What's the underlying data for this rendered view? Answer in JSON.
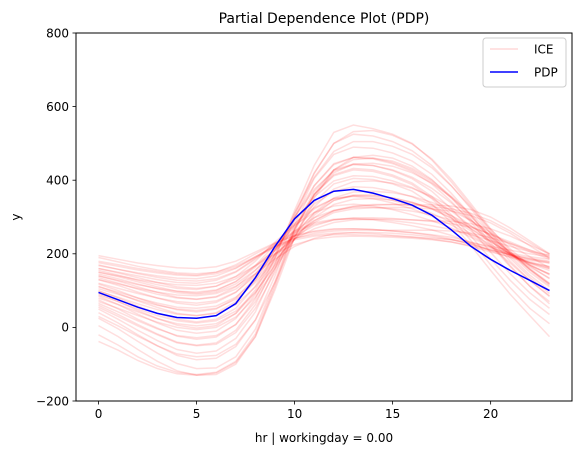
{
  "chart_data": {
    "type": "line",
    "title": "Partial Dependence Plot (PDP)",
    "xlabel": "hr | workingday = 0.00",
    "ylabel": "y",
    "xlim": [
      -1.15,
      24.15
    ],
    "ylim": [
      -200,
      800
    ],
    "xticks": [
      0,
      5,
      10,
      15,
      20
    ],
    "yticks": [
      -200,
      0,
      200,
      400,
      600,
      800
    ],
    "grid": false,
    "legend": {
      "placement": "top-right",
      "entries": [
        "ICE",
        "PDP"
      ]
    },
    "colors": {
      "ice": "#ff0000",
      "pdp": "#0000ff"
    },
    "x": [
      0,
      1,
      2,
      3,
      4,
      5,
      6,
      7,
      8,
      9,
      10,
      11,
      12,
      13,
      14,
      15,
      16,
      17,
      18,
      19,
      20,
      21,
      22,
      23
    ],
    "series": [
      {
        "name": "PDP",
        "values": [
          95,
          75,
          55,
          38,
          27,
          25,
          32,
          65,
          135,
          220,
          295,
          345,
          370,
          375,
          365,
          350,
          332,
          305,
          265,
          220,
          185,
          155,
          128,
          100
        ]
      },
      {
        "name": "ICE",
        "curves": [
          [
            195,
            185,
            175,
            168,
            162,
            160,
            165,
            180,
            205,
            230,
            250,
            262,
            268,
            268,
            266,
            262,
            258,
            252,
            245,
            232,
            216,
            202,
            192,
            185
          ],
          [
            180,
            170,
            160,
            152,
            145,
            142,
            150,
            170,
            200,
            228,
            248,
            260,
            266,
            268,
            266,
            262,
            257,
            250,
            240,
            226,
            210,
            196,
            185,
            178
          ],
          [
            168,
            158,
            148,
            140,
            134,
            132,
            140,
            160,
            192,
            222,
            242,
            252,
            256,
            257,
            255,
            250,
            246,
            240,
            232,
            220,
            205,
            192,
            182,
            175
          ],
          [
            160,
            150,
            140,
            130,
            122,
            120,
            128,
            150,
            185,
            225,
            258,
            280,
            292,
            295,
            292,
            285,
            276,
            265,
            250,
            230,
            208,
            190,
            176,
            165
          ],
          [
            155,
            142,
            128,
            116,
            106,
            103,
            112,
            138,
            180,
            232,
            278,
            312,
            330,
            335,
            330,
            320,
            306,
            290,
            270,
            245,
            218,
            196,
            178,
            165
          ],
          [
            150,
            138,
            124,
            110,
            98,
            93,
            100,
            125,
            168,
            225,
            282,
            325,
            350,
            356,
            350,
            338,
            322,
            302,
            278,
            250,
            220,
            195,
            175,
            160
          ],
          [
            140,
            126,
            110,
            95,
            82,
            77,
            84,
            110,
            155,
            215,
            275,
            322,
            350,
            358,
            355,
            345,
            330,
            310,
            285,
            255,
            225,
            198,
            176,
            160
          ],
          [
            130,
            114,
            96,
            80,
            66,
            60,
            68,
            95,
            145,
            210,
            280,
            335,
            370,
            382,
            380,
            370,
            355,
            332,
            303,
            268,
            232,
            200,
            174,
            155
          ],
          [
            118,
            100,
            80,
            62,
            48,
            42,
            50,
            80,
            135,
            210,
            290,
            355,
            398,
            412,
            410,
            398,
            380,
            352,
            316,
            275,
            235,
            198,
            168,
            145
          ],
          [
            112,
            92,
            72,
            54,
            38,
            32,
            40,
            70,
            128,
            210,
            300,
            375,
            425,
            442,
            440,
            428,
            408,
            378,
            338,
            292,
            245,
            204,
            170,
            143
          ],
          [
            100,
            80,
            58,
            38,
            22,
            15,
            22,
            52,
            112,
            200,
            300,
            385,
            442,
            462,
            460,
            448,
            428,
            396,
            352,
            300,
            248,
            202,
            164,
            134
          ],
          [
            92,
            70,
            46,
            24,
            6,
            -2,
            5,
            38,
            102,
            198,
            310,
            408,
            478,
            505,
            505,
            492,
            470,
            434,
            384,
            326,
            266,
            213,
            168,
            132
          ],
          [
            85,
            62,
            36,
            12,
            -8,
            -16,
            -10,
            24,
            90,
            190,
            310,
            420,
            500,
            532,
            535,
            522,
            498,
            458,
            402,
            336,
            268,
            208,
            158,
            118
          ],
          [
            75,
            50,
            22,
            -2,
            -24,
            -32,
            -26,
            8,
            78,
            188,
            318,
            440,
            530,
            550,
            540,
            525,
            500,
            455,
            395,
            330,
            262,
            200,
            150,
            110
          ],
          [
            60,
            35,
            8,
            -18,
            -40,
            -48,
            -42,
            -8,
            62,
            172,
            302,
            418,
            500,
            525,
            520,
            505,
            480,
            440,
            385,
            322,
            256,
            194,
            142,
            100
          ],
          [
            50,
            22,
            -8,
            -36,
            -60,
            -70,
            -64,
            -30,
            42,
            158,
            295,
            405,
            470,
            490,
            487,
            474,
            452,
            416,
            364,
            304,
            240,
            180,
            128,
            86
          ],
          [
            40,
            12,
            -20,
            -50,
            -76,
            -88,
            -84,
            -52,
            20,
            140,
            280,
            385,
            445,
            462,
            458,
            445,
            424,
            390,
            342,
            286,
            224,
            165,
            112,
            70
          ],
          [
            25,
            -4,
            -38,
            -70,
            -98,
            -112,
            -110,
            -80,
            -5,
            125,
            270,
            370,
            428,
            444,
            440,
            426,
            404,
            370,
            322,
            266,
            204,
            146,
            94,
            52
          ],
          [
            5,
            -25,
            -60,
            -92,
            -118,
            -130,
            -128,
            -100,
            -25,
            110,
            262,
            360,
            415,
            432,
            428,
            414,
            392,
            356,
            306,
            248,
            186,
            128,
            76,
            35
          ],
          [
            -20,
            -48,
            -80,
            -105,
            -122,
            -128,
            -122,
            -92,
            -18,
            118,
            268,
            362,
            412,
            428,
            424,
            410,
            388,
            350,
            298,
            236,
            170,
            108,
            52,
            10
          ],
          [
            -38,
            -62,
            -90,
            -112,
            -126,
            -130,
            -124,
            -95,
            -25,
            102,
            245,
            340,
            390,
            405,
            402,
            390,
            370,
            335,
            285,
            222,
            155,
            90,
            32,
            -25
          ],
          [
            160,
            148,
            135,
            122,
            110,
            106,
            112,
            132,
            168,
            210,
            248,
            276,
            292,
            298,
            298,
            296,
            292,
            288,
            282,
            272,
            254,
            232,
            210,
            190
          ],
          [
            145,
            132,
            118,
            105,
            94,
            90,
            96,
            118,
            156,
            200,
            240,
            268,
            285,
            292,
            294,
            294,
            292,
            290,
            288,
            282,
            268,
            248,
            224,
            200
          ],
          [
            120,
            106,
            92,
            80,
            70,
            66,
            72,
            96,
            140,
            195,
            248,
            290,
            318,
            330,
            334,
            334,
            332,
            328,
            322,
            310,
            290,
            262,
            230,
            198
          ],
          [
            135,
            120,
            104,
            90,
            80,
            76,
            82,
            104,
            145,
            198,
            250,
            290,
            316,
            328,
            332,
            334,
            334,
            333,
            330,
            320,
            300,
            270,
            235,
            200
          ],
          [
            105,
            90,
            74,
            60,
            50,
            46,
            52,
            76,
            122,
            182,
            240,
            285,
            312,
            322,
            325,
            326,
            325,
            322,
            316,
            304,
            284,
            256,
            222,
            188
          ],
          [
            88,
            70,
            50,
            32,
            18,
            12,
            18,
            44,
            96,
            168,
            240,
            298,
            334,
            348,
            350,
            346,
            338,
            324,
            304,
            276,
            240,
            200,
            158,
            118
          ],
          [
            70,
            52,
            32,
            14,
            0,
            -6,
            0,
            28,
            82,
            160,
            240,
            305,
            345,
            360,
            360,
            352,
            340,
            322,
            296,
            262,
            220,
            175,
            128,
            84
          ],
          [
            176,
            166,
            156,
            148,
            142,
            140,
            146,
            162,
            190,
            218,
            238,
            248,
            252,
            252,
            250,
            248,
            245,
            242,
            238,
            230,
            220,
            210,
            200,
            192
          ],
          [
            150,
            140,
            130,
            122,
            116,
            114,
            120,
            138,
            168,
            200,
            225,
            240,
            246,
            248,
            247,
            245,
            242,
            238,
            232,
            222,
            210,
            198,
            188,
            180
          ],
          [
            130,
            118,
            106,
            96,
            88,
            86,
            92,
            112,
            146,
            186,
            220,
            242,
            254,
            258,
            258,
            256,
            252,
            246,
            238,
            226,
            212,
            198,
            186,
            175
          ],
          [
            110,
            96,
            80,
            66,
            55,
            52,
            58,
            82,
            128,
            190,
            255,
            310,
            345,
            358,
            358,
            352,
            340,
            322,
            298,
            268,
            234,
            200,
            170,
            145
          ],
          [
            98,
            82,
            64,
            48,
            36,
            32,
            38,
            62,
            110,
            178,
            250,
            312,
            352,
            368,
            370,
            366,
            356,
            340,
            318,
            290,
            258,
            224,
            192,
            162
          ],
          [
            65,
            42,
            18,
            -4,
            -22,
            -28,
            -22,
            8,
            70,
            162,
            268,
            360,
            420,
            444,
            446,
            438,
            420,
            392,
            354,
            308,
            256,
            204,
            156,
            114
          ],
          [
            55,
            30,
            4,
            -20,
            -42,
            -50,
            -46,
            -14,
            52,
            150,
            264,
            362,
            428,
            456,
            460,
            452,
            432,
            400,
            356,
            304,
            246,
            188,
            136,
            92
          ],
          [
            30,
            4,
            -24,
            -50,
            -72,
            -80,
            -76,
            -46,
            20,
            122,
            244,
            352,
            428,
            462,
            468,
            460,
            438,
            402,
            352,
            294,
            230,
            168,
            112,
            64
          ],
          [
            140,
            128,
            116,
            106,
            98,
            96,
            102,
            124,
            164,
            214,
            262,
            298,
            318,
            326,
            326,
            322,
            316,
            306,
            292,
            274,
            252,
            228,
            206,
            186
          ],
          [
            170,
            158,
            146,
            136,
            128,
            126,
            132,
            152,
            188,
            228,
            262,
            284,
            294,
            296,
            294,
            290,
            284,
            276,
            266,
            252,
            236,
            220,
            206,
            196
          ],
          [
            80,
            62,
            42,
            24,
            10,
            4,
            10,
            38,
            94,
            172,
            256,
            328,
            376,
            396,
            398,
            392,
            378,
            356,
            326,
            290,
            248,
            204,
            160,
            120
          ],
          [
            190,
            178,
            166,
            156,
            148,
            146,
            150,
            166,
            192,
            220,
            242,
            256,
            262,
            264,
            264,
            264,
            264,
            264,
            262,
            256,
            244,
            228,
            210,
            195
          ]
        ]
      }
    ]
  }
}
